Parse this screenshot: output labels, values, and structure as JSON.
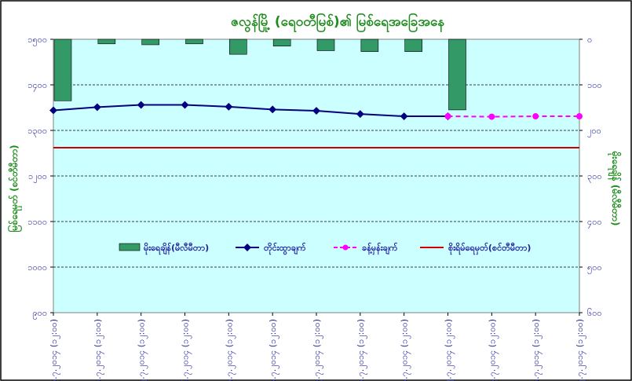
{
  "chart_data": {
    "type": "bar+line",
    "title": "ဇလွန်မြို့ (ရေဝတီမြစ်)၏ မြစ်ရေအခြေအနေ",
    "ylabel_left": "မြစ်ရေမှတ် (စင်တီမီတာ)",
    "ylabel_right": "မိုးရေချိန် (မီလီမီတာ)",
    "ylim_left": [
      900,
      1500
    ],
    "yticks_left": [
      900,
      1000,
      1100,
      1200,
      1300,
      1400,
      1500
    ],
    "ytick_labels_left": [
      "၉၀၀",
      "၁၀၀၀",
      "၁၁၀၀",
      "၁၂၀၀",
      "၁၃၀၀",
      "၁၄၀၀",
      "၁၅၀၀"
    ],
    "ylim_right": [
      600,
      0
    ],
    "yticks_right": [
      0,
      100,
      200,
      300,
      400,
      500,
      600
    ],
    "ytick_labels_right": [
      "၀",
      "၁၀၀",
      "၂၀၀",
      "၃၀၀",
      "၄၀၀",
      "၅၀၀",
      "၆၀၀"
    ],
    "categories": [
      "၁၃.၇.၂၀၁၄ (၁၂:၀၀)",
      "၁၄.၇.၂၀၁၄ (၁၂:၀၀)",
      "၁၅.၇.၂၀၁၄ (၁၂:၀၀)",
      "၁၆.၇.၂၀၁၄ (၁၂:၀၀)",
      "၁၇.၇.၂၀၁၄ (၁၂:၀၀)",
      "၁၈.၇.၂၀၁၄ (၁၂:၀၀)",
      "၁၉.၇.၂၀၁၄ (၁၂:၀၀)",
      "၂၀.၇.၂၀၁၄ (၁၂:၀၀)",
      "၂၁.၇.၂၀၁၄ (၁၂:၀၀)",
      "၂၂.၇.၂၀၁၄ (၁၂:၀၀)",
      "၂၃.၇.၂၀၁၄ (၁၂:၀၀)",
      "၂၄.၇.၂၀၁၄ (၁၂:၀၀)",
      "၂၅.၇.၂၀၁၄ (၁၂:၀၀)"
    ],
    "series": [
      {
        "name": "မိုးရေချိန်(မီလီမီတာ)",
        "kind": "bar",
        "axis": "right",
        "color": "#339966",
        "values": [
          135,
          10,
          12,
          10,
          33,
          15,
          25,
          27,
          27,
          155,
          null,
          null,
          null
        ]
      },
      {
        "name": "တိုင်းထွာချက်",
        "kind": "line",
        "axis": "left",
        "color": "#000080",
        "values": [
          1344,
          1351,
          1356,
          1356,
          1352,
          1346,
          1343,
          1336,
          1331,
          1331,
          null,
          null,
          null
        ]
      },
      {
        "name": "ခန့်မှန်းချက်",
        "kind": "dashed-line",
        "axis": "left",
        "color": "#ff00ff",
        "values": [
          null,
          null,
          null,
          null,
          null,
          null,
          null,
          null,
          null,
          1331,
          1330,
          1331,
          1331
        ]
      },
      {
        "name": "စိုးရိမ်ရေမှတ်(စင်တီမီတာ)",
        "kind": "hline",
        "axis": "left",
        "color": "#cc0000",
        "value": 1262
      }
    ],
    "grid": true,
    "legend_position": "inside-lower-center"
  }
}
